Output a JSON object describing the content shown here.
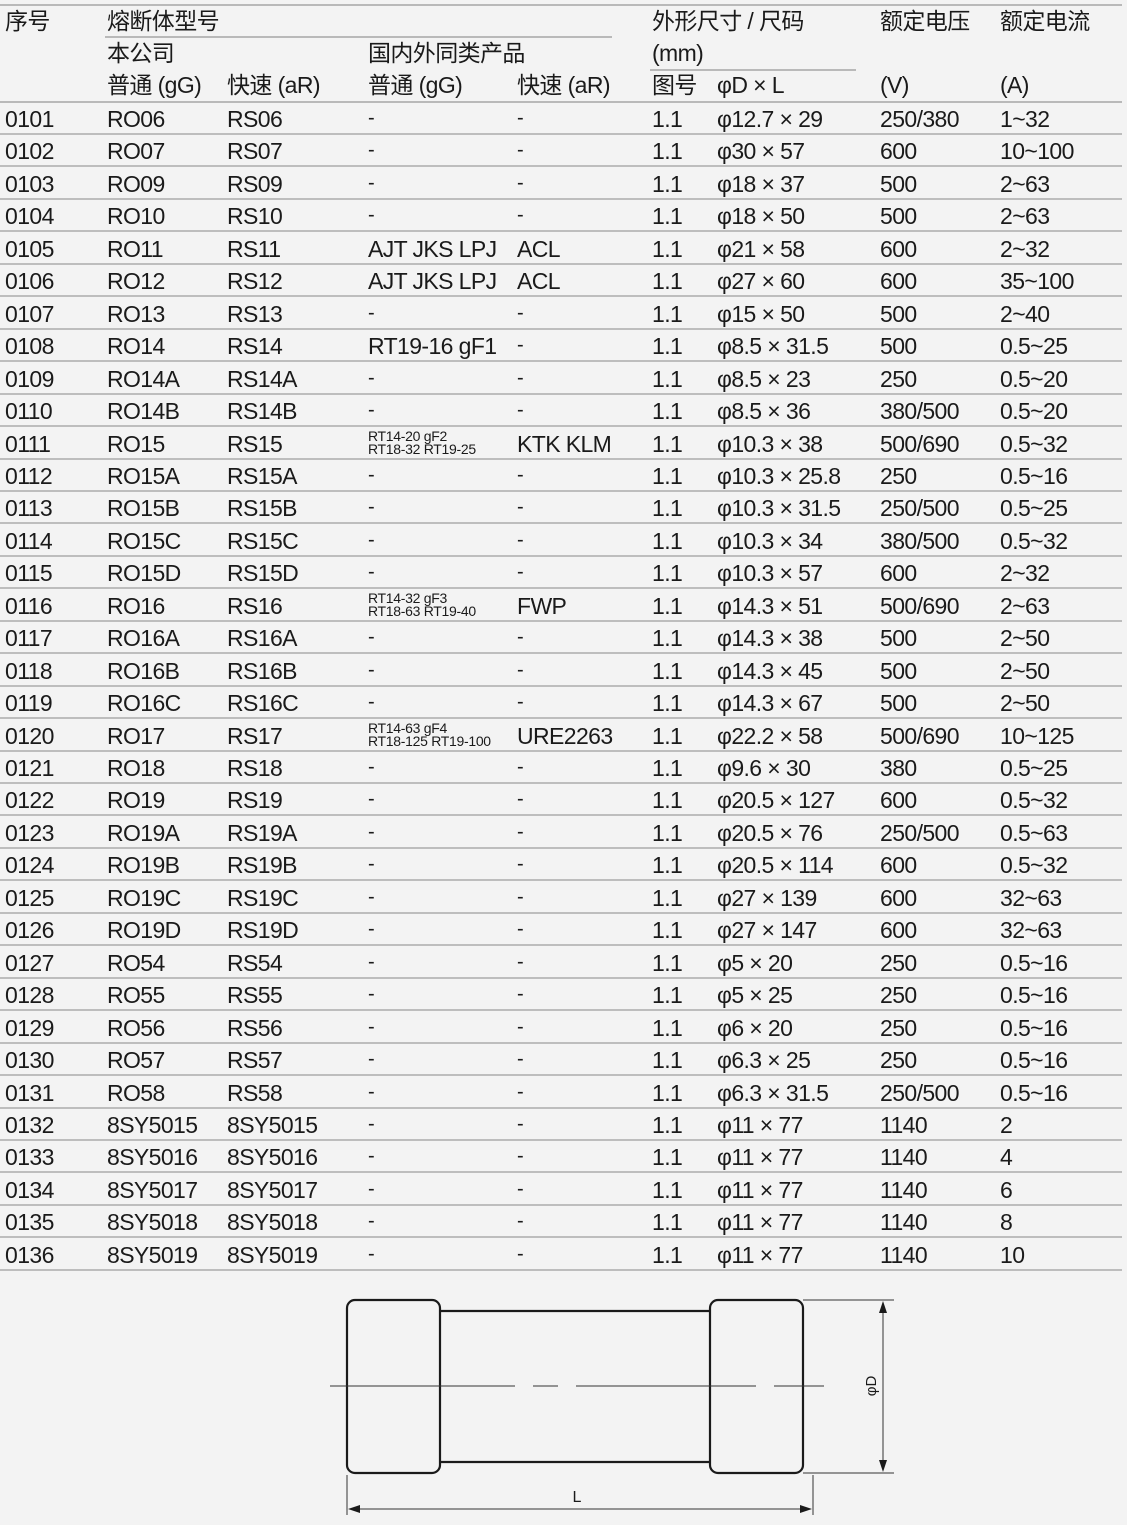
{
  "header": {
    "col_no": "序号",
    "fuse_model": "熔断体型号",
    "company": "本公司",
    "similar_products": "国内外同类产品",
    "dimensions": "外形尺寸 / 尺码",
    "dimensions_unit": "(mm)",
    "rated_voltage": "额定电压",
    "rated_current": "额定电流",
    "company_gg": "普通 (gG)",
    "company_ar": "快速 (aR)",
    "similar_gg": "普通 (gG)",
    "similar_ar": "快速 (aR)",
    "figure_no": "图号",
    "dxl": "φD × L",
    "voltage_unit": "(V)",
    "current_unit": "(A)"
  },
  "rows": [
    [
      "0101",
      "RO06",
      "RS06",
      "-",
      "-",
      "1.1",
      "φ12.7 × 29",
      "250/380",
      "1~32"
    ],
    [
      "0102",
      "RO07",
      "RS07",
      "-",
      "-",
      "1.1",
      "φ30 × 57",
      "600",
      "10~100"
    ],
    [
      "0103",
      "RO09",
      "RS09",
      "-",
      "-",
      "1.1",
      "φ18 × 37",
      "500",
      "2~63"
    ],
    [
      "0104",
      "RO10",
      "RS10",
      "-",
      "-",
      "1.1",
      "φ18 × 50",
      "500",
      "2~63"
    ],
    [
      "0105",
      "RO11",
      "RS11",
      "AJT JKS LPJ",
      "ACL",
      "1.1",
      "φ21 × 58",
      "600",
      "2~32"
    ],
    [
      "0106",
      "RO12",
      "RS12",
      "AJT JKS LPJ",
      "ACL",
      "1.1",
      "φ27 × 60",
      "600",
      "35~100"
    ],
    [
      "0107",
      "RO13",
      "RS13",
      "-",
      "-",
      "1.1",
      "φ15 × 50",
      "500",
      "2~40"
    ],
    [
      "0108",
      "RO14",
      "RS14",
      "RT19-16 gF1",
      "-",
      "1.1",
      "φ8.5 × 31.5",
      "500",
      "0.5~25"
    ],
    [
      "0109",
      "RO14A",
      "RS14A",
      "-",
      "-",
      "1.1",
      "φ8.5 × 23",
      "250",
      "0.5~20"
    ],
    [
      "0110",
      "RO14B",
      "RS14B",
      "-",
      "-",
      "1.1",
      "φ8.5 × 36",
      "380/500",
      "0.5~20"
    ],
    [
      "0111",
      "RO15",
      "RS15",
      "RT14-20 gF2\nRT18-32 RT19-25",
      "KTK KLM",
      "1.1",
      "φ10.3 × 38",
      "500/690",
      "0.5~32"
    ],
    [
      "0112",
      "RO15A",
      "RS15A",
      "-",
      "-",
      "1.1",
      "φ10.3 × 25.8",
      "250",
      "0.5~16"
    ],
    [
      "0113",
      "RO15B",
      "RS15B",
      "-",
      "-",
      "1.1",
      "φ10.3 × 31.5",
      "250/500",
      "0.5~25"
    ],
    [
      "0114",
      "RO15C",
      "RS15C",
      "-",
      "-",
      "1.1",
      "φ10.3 × 34",
      "380/500",
      "0.5~32"
    ],
    [
      "0115",
      "RO15D",
      "RS15D",
      "-",
      "-",
      "1.1",
      "φ10.3 × 57",
      "600",
      "2~32"
    ],
    [
      "0116",
      "RO16",
      "RS16",
      "RT14-32 gF3\nRT18-63 RT19-40",
      "FWP",
      "1.1",
      "φ14.3 × 51",
      "500/690",
      "2~63"
    ],
    [
      "0117",
      "RO16A",
      "RS16A",
      "-",
      "-",
      "1.1",
      "φ14.3 × 38",
      "500",
      "2~50"
    ],
    [
      "0118",
      "RO16B",
      "RS16B",
      "-",
      "-",
      "1.1",
      "φ14.3 × 45",
      "500",
      "2~50"
    ],
    [
      "0119",
      "RO16C",
      "RS16C",
      "-",
      "-",
      "1.1",
      "φ14.3 × 67",
      "500",
      "2~50"
    ],
    [
      "0120",
      "RO17",
      "RS17",
      "RT14-63 gF4\nRT18-125 RT19-100",
      "URE2263",
      "1.1",
      "φ22.2 × 58",
      "500/690",
      "10~125"
    ],
    [
      "0121",
      "RO18",
      "RS18",
      "-",
      "-",
      "1.1",
      "φ9.6 × 30",
      "380",
      "0.5~25"
    ],
    [
      "0122",
      "RO19",
      "RS19",
      "-",
      "-",
      "1.1",
      "φ20.5 × 127",
      "600",
      "0.5~32"
    ],
    [
      "0123",
      "RO19A",
      "RS19A",
      "-",
      "-",
      "1.1",
      "φ20.5 × 76",
      "250/500",
      "0.5~63"
    ],
    [
      "0124",
      "RO19B",
      "RS19B",
      "-",
      "-",
      "1.1",
      "φ20.5 × 114",
      "600",
      "0.5~32"
    ],
    [
      "0125",
      "RO19C",
      "RS19C",
      "-",
      "-",
      "1.1",
      "φ27 × 139",
      "600",
      "32~63"
    ],
    [
      "0126",
      "RO19D",
      "RS19D",
      "-",
      "-",
      "1.1",
      "φ27 × 147",
      "600",
      "32~63"
    ],
    [
      "0127",
      "RO54",
      "RS54",
      "-",
      "-",
      "1.1",
      "φ5 × 20",
      "250",
      "0.5~16"
    ],
    [
      "0128",
      "RO55",
      "RS55",
      "-",
      "-",
      "1.1",
      "φ5 × 25",
      "250",
      "0.5~16"
    ],
    [
      "0129",
      "RO56",
      "RS56",
      "-",
      "-",
      "1.1",
      "φ6 × 20",
      "250",
      "0.5~16"
    ],
    [
      "0130",
      "RO57",
      "RS57",
      "-",
      "-",
      "1.1",
      "φ6.3 × 25",
      "250",
      "0.5~16"
    ],
    [
      "0131",
      "RO58",
      "RS58",
      "-",
      "-",
      "1.1",
      "φ6.3 × 31.5",
      "250/500",
      "0.5~16"
    ],
    [
      "0132",
      "8SY5015",
      "8SY5015",
      "-",
      "-",
      "1.1",
      "φ11 × 77",
      "1140",
      "2"
    ],
    [
      "0133",
      "8SY5016",
      "8SY5016",
      "-",
      "-",
      "1.1",
      "φ11 × 77",
      "1140",
      "4"
    ],
    [
      "0134",
      "8SY5017",
      "8SY5017",
      "-",
      "-",
      "1.1",
      "φ11 × 77",
      "1140",
      "6"
    ],
    [
      "0135",
      "8SY5018",
      "8SY5018",
      "-",
      "-",
      "1.1",
      "φ11 × 77",
      "1140",
      "8"
    ],
    [
      "0136",
      "8SY5019",
      "8SY5019",
      "-",
      "-",
      "1.1",
      "φ11 × 77",
      "1140",
      "10"
    ]
  ],
  "drawing": {
    "diameter_label": "φD",
    "length_label": "L"
  }
}
